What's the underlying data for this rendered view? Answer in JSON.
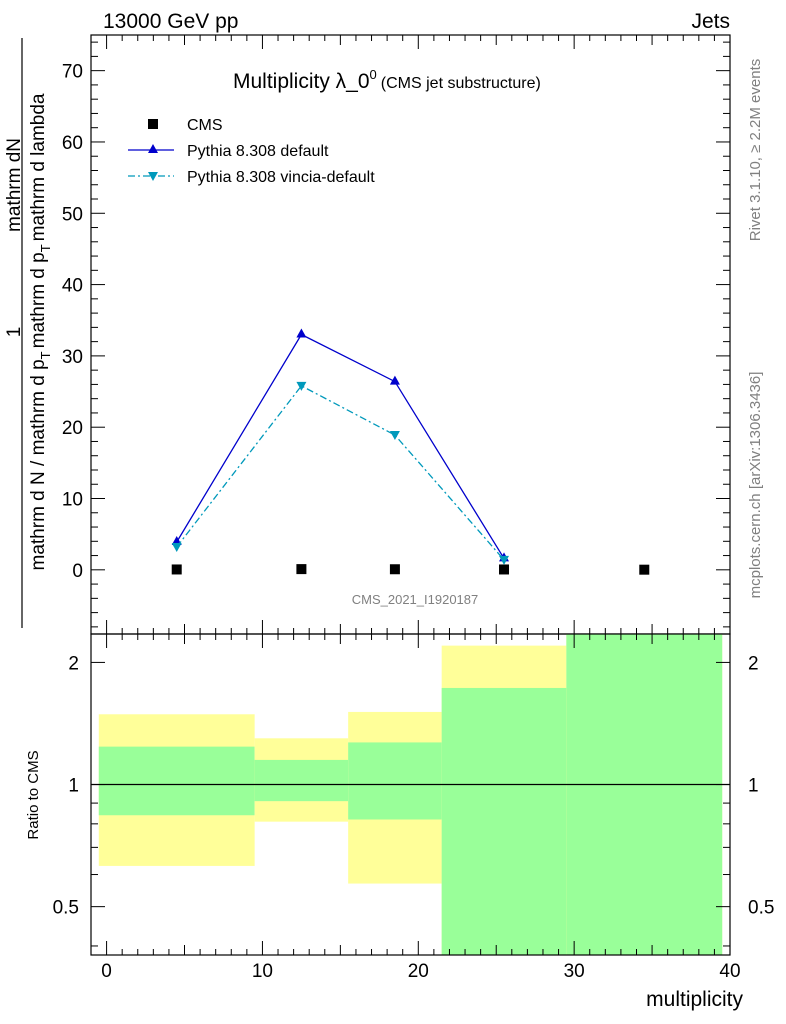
{
  "header": {
    "left": "13000 GeV pp",
    "right": "Jets"
  },
  "side_labels": {
    "rivet": "Rivet 3.1.10, ≥ 2.2M events",
    "mcplots": "mcplots.cern.ch [arXiv:1306.3436]"
  },
  "chart_data": [
    {
      "type": "line",
      "title_main": "Multiplicity λ_0",
      "title_sup": "0",
      "title_sub": "(CMS jet substructure)",
      "ylabel_num": "mathrm dN",
      "ylabel_pre": "mathrm d N / mathrm d p",
      "ylabel_mid": "mathrm d p",
      "ylabel_post": "mathrm d lambda",
      "ylabel_t": "T",
      "ylabel_one": "1",
      "ylabel_bar_num": "mathrm d p",
      "ylabel_bar_post": "mathrm d lambda",
      "ylabel_den_pre": "mathrm d N / mathrm d p",
      "ylabel_den_post": "mathrm d p",
      "ylabel_den_end": "mathrm d lambda",
      "watermark": "CMS_2021_I1920187",
      "xlim": [
        -1,
        40
      ],
      "ylim": [
        -9,
        75
      ],
      "yticks": [
        0,
        10,
        20,
        30,
        40,
        50,
        60,
        70
      ],
      "legend_position": "top-left",
      "series": [
        {
          "name": "CMS",
          "color": "#000000",
          "marker": "square",
          "x": [
            4.5,
            12.5,
            18.5,
            25.5,
            34.5
          ],
          "y": [
            0.05,
            0.1,
            0.08,
            0.05,
            0.02
          ]
        },
        {
          "name": "Pythia 8.308 default",
          "color": "#0000cc",
          "marker": "triangle-up",
          "x": [
            4.5,
            12.5,
            18.5,
            25.5
          ],
          "y": [
            3.9,
            33.0,
            26.4,
            1.6
          ]
        },
        {
          "name": "Pythia 8.308 vincia-default",
          "color": "#0099bb",
          "marker": "triangle-down",
          "x": [
            4.5,
            12.5,
            18.5,
            25.5
          ],
          "y": [
            3.2,
            25.8,
            18.9,
            1.4
          ]
        }
      ]
    },
    {
      "type": "ratio-bands",
      "ylabel": "Ratio to CMS",
      "xlabel": "multiplicity",
      "xlim": [
        -1,
        40
      ],
      "ylim": [
        0.38,
        2.35
      ],
      "log_y": true,
      "yticks": [
        0.5,
        1,
        2
      ],
      "ytick_labels": [
        "0.5",
        "1",
        "2"
      ],
      "xticks": [
        0,
        10,
        20,
        30,
        40
      ],
      "reference_line": 1,
      "bands": [
        {
          "x": [
            -0.5,
            9.5
          ],
          "outer": [
            0.63,
            1.49
          ],
          "inner": [
            0.84,
            1.24
          ]
        },
        {
          "x": [
            9.5,
            15.5
          ],
          "outer": [
            0.81,
            1.3
          ],
          "inner": [
            0.91,
            1.15
          ]
        },
        {
          "x": [
            15.5,
            21.5
          ],
          "outer": [
            0.57,
            1.51
          ],
          "inner": [
            0.82,
            1.27
          ]
        },
        {
          "x": [
            21.5,
            29.5
          ],
          "outer": [
            0.37,
            2.2
          ],
          "inner": [
            0.37,
            1.73
          ]
        },
        {
          "x": [
            29.5,
            39.5
          ],
          "outer": [
            0.37,
            2.4
          ],
          "inner": [
            0.37,
            2.4
          ]
        }
      ],
      "colors": {
        "outer": "#ffff99",
        "inner": "#99ff99"
      }
    }
  ]
}
